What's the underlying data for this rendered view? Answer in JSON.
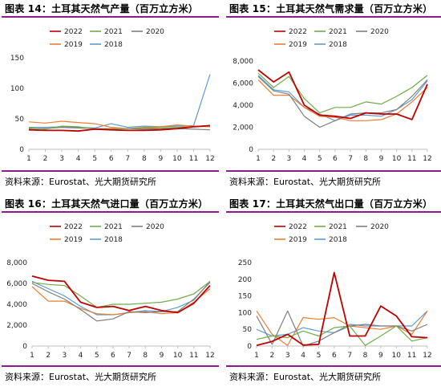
{
  "chart_data": [
    {
      "type": "line",
      "title": "图表 14：土耳其天然气产量（百万立方米）",
      "source": "资料来源：Eurostat、光大期货研究所",
      "x": [
        1,
        2,
        3,
        4,
        5,
        6,
        7,
        8,
        9,
        10,
        11,
        12
      ],
      "ylim": [
        0,
        150
      ],
      "yticks": [
        0,
        50,
        100,
        150
      ],
      "legend_position": "top",
      "series": [
        {
          "name": "2022",
          "color": "#c00000",
          "values": [
            32,
            31,
            31,
            30,
            33,
            32,
            31,
            31,
            32,
            34,
            37,
            39
          ]
        },
        {
          "name": "2021",
          "color": "#70ad47",
          "values": [
            35,
            33,
            38,
            37,
            33,
            34,
            34,
            35,
            35,
            36,
            37,
            38
          ]
        },
        {
          "name": "2020",
          "color": "#7f7f7f",
          "values": [
            34,
            34,
            36,
            35,
            34,
            34,
            34,
            33,
            34,
            34,
            33,
            32
          ]
        },
        {
          "name": "2019",
          "color": "#ed7d31",
          "values": [
            45,
            43,
            46,
            44,
            42,
            36,
            34,
            36,
            37,
            40,
            38,
            37
          ]
        },
        {
          "name": "2018",
          "color": "#5b9bd5",
          "values": [
            36,
            36,
            37,
            36,
            35,
            42,
            36,
            38,
            37,
            38,
            39,
            123
          ]
        }
      ]
    },
    {
      "type": "line",
      "title": "图表 15：土耳其天然气需求量（百万立方米）",
      "source": "资料来源：Eurostat、光大期货研究所",
      "x": [
        1,
        2,
        3,
        4,
        5,
        6,
        7,
        8,
        9,
        10,
        11,
        12
      ],
      "ylim": [
        0,
        8000
      ],
      "yticks": [
        0,
        2000,
        4000,
        6000,
        8000
      ],
      "legend_position": "top",
      "series": [
        {
          "name": "2022",
          "color": "#c00000",
          "values": [
            7200,
            6100,
            7000,
            4000,
            3100,
            3000,
            2800,
            3300,
            3200,
            3200,
            2700,
            5900
          ]
        },
        {
          "name": "2021",
          "color": "#70ad47",
          "values": [
            6900,
            5600,
            6600,
            4600,
            3300,
            3800,
            3800,
            4300,
            4100,
            4800,
            5600,
            6700
          ]
        },
        {
          "name": "2020",
          "color": "#7f7f7f",
          "values": [
            6600,
            5300,
            5000,
            3000,
            2000,
            2600,
            3200,
            3300,
            3300,
            3600,
            4800,
            6300
          ]
        },
        {
          "name": "2019",
          "color": "#ed7d31",
          "values": [
            6300,
            4900,
            4900,
            3800,
            3000,
            2900,
            2600,
            2600,
            2700,
            3200,
            4300,
            5600
          ]
        },
        {
          "name": "2018",
          "color": "#5b9bd5",
          "values": [
            6700,
            5400,
            5200,
            3800,
            3200,
            2600,
            3100,
            3100,
            3000,
            3600,
            4500,
            6200
          ]
        }
      ]
    },
    {
      "type": "line",
      "title": "图表 16：土耳其天然气进口量（百万立方米）",
      "source": "资料来源：Eurostat、光大期货研究所",
      "x": [
        1,
        2,
        3,
        4,
        5,
        6,
        7,
        8,
        9,
        10,
        11,
        12
      ],
      "ylim": [
        0,
        8000
      ],
      "yticks": [
        0,
        2000,
        4000,
        6000,
        8000
      ],
      "legend_position": "top",
      "series": [
        {
          "name": "2022",
          "color": "#c00000",
          "values": [
            6700,
            6300,
            6200,
            4200,
            3700,
            3800,
            3400,
            3800,
            3400,
            3200,
            4100,
            5800
          ]
        },
        {
          "name": "2021",
          "color": "#70ad47",
          "values": [
            6100,
            5900,
            5800,
            4800,
            3700,
            4000,
            4000,
            4100,
            4200,
            4500,
            5000,
            6200
          ]
        },
        {
          "name": "2020",
          "color": "#7f7f7f",
          "values": [
            6000,
            5200,
            4500,
            3500,
            2400,
            2600,
            3300,
            3200,
            3300,
            3300,
            4500,
            6100
          ]
        },
        {
          "name": "2019",
          "color": "#ed7d31",
          "values": [
            5700,
            4300,
            4300,
            3600,
            3100,
            3000,
            3200,
            3300,
            3100,
            3200,
            4200,
            5500
          ]
        },
        {
          "name": "2018",
          "color": "#5b9bd5",
          "values": [
            6200,
            5500,
            4800,
            3800,
            3000,
            3000,
            3200,
            3400,
            3300,
            3700,
            4400,
            6200
          ]
        }
      ]
    },
    {
      "type": "line",
      "title": "图表 17：土耳其天然气出口量（百万立方米）",
      "source": "资料来源：Eurostat、光大期货研究所",
      "x": [
        1,
        2,
        3,
        4,
        5,
        6,
        7,
        8,
        9,
        10,
        11,
        12
      ],
      "ylim": [
        0,
        250
      ],
      "yticks": [
        0,
        50,
        100,
        150,
        200,
        250
      ],
      "legend_position": "top",
      "series": [
        {
          "name": "2022",
          "color": "#c00000",
          "values": [
            2,
            14,
            35,
            3,
            5,
            220,
            30,
            30,
            120,
            90,
            28,
            25
          ]
        },
        {
          "name": "2021",
          "color": "#70ad47",
          "values": [
            20,
            30,
            25,
            45,
            30,
            55,
            60,
            2,
            30,
            60,
            15,
            25
          ]
        },
        {
          "name": "2020",
          "color": "#7f7f7f",
          "values": [
            90,
            5,
            105,
            0,
            15,
            40,
            60,
            65,
            60,
            60,
            45,
            65
          ]
        },
        {
          "name": "2019",
          "color": "#ed7d31",
          "values": [
            105,
            35,
            2,
            85,
            80,
            85,
            60,
            55,
            50,
            60,
            35,
            105
          ]
        },
        {
          "name": "2018",
          "color": "#5b9bd5",
          "values": [
            50,
            30,
            35,
            55,
            45,
            40,
            65,
            60,
            60,
            60,
            60,
            105
          ]
        }
      ]
    }
  ]
}
